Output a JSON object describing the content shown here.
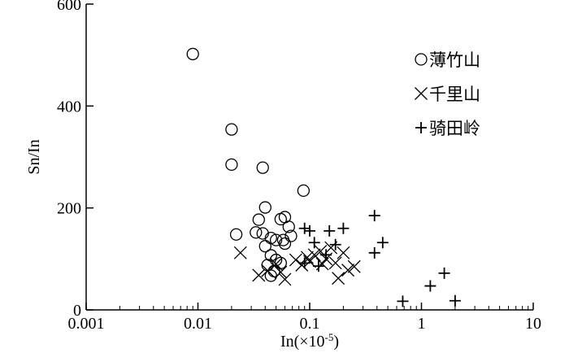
{
  "chart_data": {
    "type": "scatter",
    "xlabel": "In(×10-5)",
    "ylabel": "Sn/In",
    "x_scale": "log",
    "xlim": [
      0.001,
      10
    ],
    "ylim": [
      0,
      600
    ],
    "x_ticks": [
      0.001,
      0.01,
      0.1,
      1,
      10
    ],
    "x_tick_labels": [
      "0.001",
      "0.01",
      "0.1",
      "1",
      "10"
    ],
    "y_ticks": [
      0,
      200,
      400,
      600
    ],
    "y_tick_labels": [
      "0",
      "200",
      "400",
      "600"
    ],
    "grid": false,
    "legend_position": "top-right",
    "series": [
      {
        "name": "薄竹山",
        "marker": "circle",
        "points": [
          [
            0.009,
            502
          ],
          [
            0.02,
            354
          ],
          [
            0.02,
            285
          ],
          [
            0.038,
            279
          ],
          [
            0.088,
            234
          ],
          [
            0.04,
            201
          ],
          [
            0.055,
            178
          ],
          [
            0.06,
            182
          ],
          [
            0.035,
            177
          ],
          [
            0.065,
            163
          ],
          [
            0.022,
            148
          ],
          [
            0.033,
            152
          ],
          [
            0.038,
            150
          ],
          [
            0.045,
            141
          ],
          [
            0.05,
            137
          ],
          [
            0.058,
            137
          ],
          [
            0.06,
            130
          ],
          [
            0.068,
            145
          ],
          [
            0.04,
            125
          ],
          [
            0.045,
            107
          ],
          [
            0.05,
            98
          ],
          [
            0.055,
            92
          ],
          [
            0.042,
            88
          ],
          [
            0.048,
            76
          ],
          [
            0.045,
            67
          ]
        ]
      },
      {
        "name": "千里山",
        "marker": "x",
        "points": [
          [
            0.024,
            112
          ],
          [
            0.035,
            68
          ],
          [
            0.042,
            77
          ],
          [
            0.05,
            90
          ],
          [
            0.055,
            74
          ],
          [
            0.06,
            60
          ],
          [
            0.075,
            98
          ],
          [
            0.085,
            88
          ],
          [
            0.095,
            103
          ],
          [
            0.1,
            95
          ],
          [
            0.11,
            108
          ],
          [
            0.125,
            115
          ],
          [
            0.14,
            100
          ],
          [
            0.155,
            122
          ],
          [
            0.17,
            92
          ],
          [
            0.18,
            62
          ],
          [
            0.2,
            112
          ],
          [
            0.22,
            78
          ],
          [
            0.25,
            85
          ],
          [
            0.13,
            90
          ]
        ]
      },
      {
        "name": "骑田岭",
        "marker": "plus",
        "points": [
          [
            0.09,
            160
          ],
          [
            0.1,
            155
          ],
          [
            0.15,
            155
          ],
          [
            0.2,
            160
          ],
          [
            0.38,
            185
          ],
          [
            0.45,
            132
          ],
          [
            0.38,
            112
          ],
          [
            0.09,
            92
          ],
          [
            0.11,
            132
          ],
          [
            0.12,
            86
          ],
          [
            0.14,
            108
          ],
          [
            0.17,
            128
          ],
          [
            0.68,
            17
          ],
          [
            1.2,
            47
          ],
          [
            1.6,
            72
          ],
          [
            2.0,
            18
          ]
        ]
      }
    ]
  }
}
